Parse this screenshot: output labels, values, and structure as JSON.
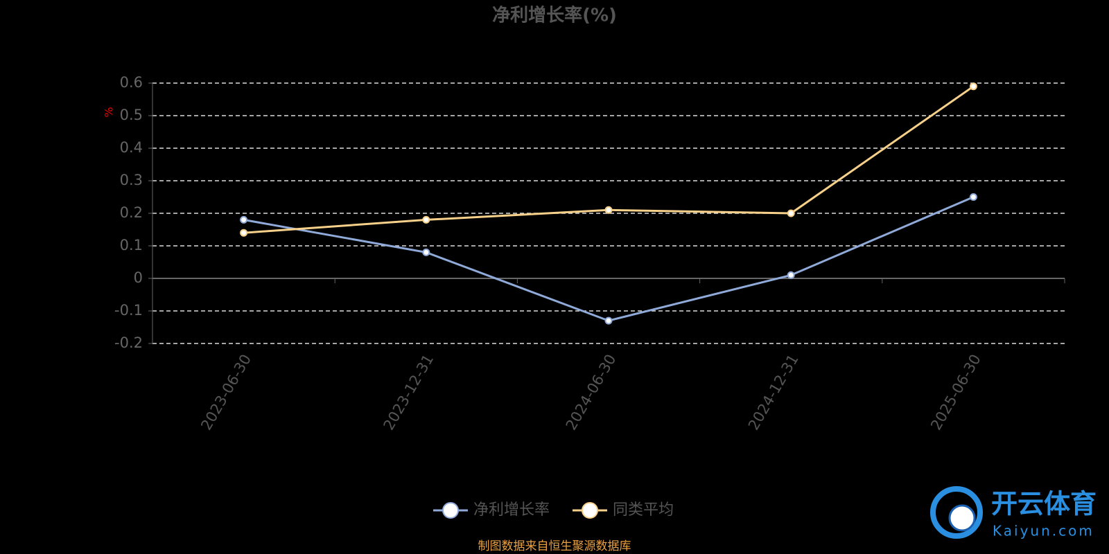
{
  "chart_data": {
    "type": "line",
    "title": "净利增长率(%)",
    "y_label": "%",
    "categories": [
      "2023-06-30",
      "2023-12-31",
      "2024-06-30",
      "2024-12-31",
      "2025-06-30"
    ],
    "series": [
      {
        "name": "净利增长率",
        "color": "#8fa9d8",
        "values": [
          0.18,
          0.08,
          -0.13,
          0.01,
          0.25
        ]
      },
      {
        "name": "同类平均",
        "color": "#f7d08a",
        "values": [
          0.14,
          0.18,
          0.21,
          0.2,
          0.59
        ]
      }
    ],
    "ylim": [
      -0.2,
      0.6
    ],
    "yticks": [
      -0.2,
      -0.1,
      0,
      0.1,
      0.2,
      0.3,
      0.4,
      0.5,
      0.6
    ],
    "grid": true,
    "legend": "bottom",
    "source": "制图数据来自恒生聚源数据库"
  },
  "watermark": {
    "name": "开云体育",
    "url": "Kaiyun.com"
  }
}
